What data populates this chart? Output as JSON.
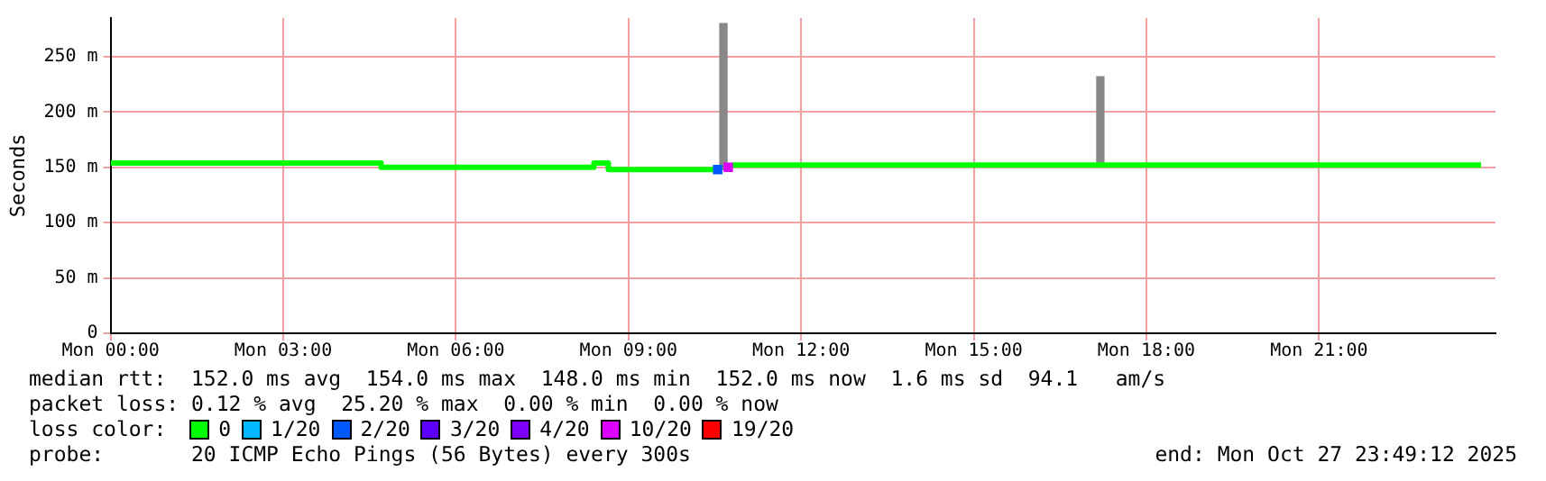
{
  "chart_data": {
    "type": "line",
    "ylabel": "Seconds",
    "legend_title": "loss color:",
    "legend": "bottom",
    "grid": true,
    "marker": "none",
    "line_style": "solid",
    "x": [
      "2025-10-27T00:00",
      "2025-10-27T04:42",
      "2025-10-27T04:42",
      "2025-10-27T08:24",
      "2025-10-27T08:24",
      "2025-10-27T08:39",
      "2025-10-27T08:39",
      "2025-10-27T10:36",
      "2025-10-27T10:39",
      "2025-10-27T10:48",
      "2025-10-27T23:49"
    ],
    "xlim": [
      "2025-10-27T00:00",
      "2025-10-28T00:04"
    ],
    "xticks": [
      {
        "value": "2025-10-27T00:00",
        "label": "Mon 00:00"
      },
      {
        "value": "2025-10-27T03:00",
        "label": "Mon 03:00"
      },
      {
        "value": "2025-10-27T06:00",
        "label": "Mon 06:00"
      },
      {
        "value": "2025-10-27T09:00",
        "label": "Mon 09:00"
      },
      {
        "value": "2025-10-27T12:00",
        "label": "Mon 12:00"
      },
      {
        "value": "2025-10-27T15:00",
        "label": "Mon 15:00"
      },
      {
        "value": "2025-10-27T18:00",
        "label": "Mon 18:00"
      },
      {
        "value": "2025-10-27T21:00",
        "label": "Mon 21:00"
      }
    ],
    "ylim": [
      0,
      285
    ],
    "yticks": [
      0,
      {
        "value": 50,
        "label": "50 m"
      },
      {
        "value": 100,
        "label": "100 m"
      },
      {
        "value": 150,
        "label": "150 m"
      },
      {
        "value": 200,
        "label": "200 m"
      },
      {
        "value": 250,
        "label": "250 m"
      }
    ],
    "series": [
      {
        "type": "bar",
        "color": "#888888",
        "x": [
          "2025-10-27T10:39",
          "2025-10-27T17:12"
        ],
        "base": [
          148,
          152
        ],
        "values": [
          132,
          80
        ]
      },
      {
        "name": "0",
        "color": "#00ff00",
        "values": [
          154,
          154,
          150,
          150,
          154,
          154,
          148,
          148,
          null,
          152,
          152
        ]
      },
      {
        "name": "1/20",
        "color": "#00b8ff",
        "values": [
          null,
          null,
          null,
          null,
          null,
          null,
          null,
          null,
          null,
          null,
          null
        ]
      },
      {
        "name": "2/20",
        "type": "scatter",
        "marker": "square",
        "color": "#0059ff",
        "x": [
          "2025-10-27T10:33"
        ],
        "values": [
          148
        ]
      },
      {
        "name": "3/20",
        "color": "#5e00ff",
        "values": [
          null,
          null,
          null,
          null,
          null,
          null,
          null,
          null,
          null,
          null,
          null
        ]
      },
      {
        "name": "4/20",
        "color": "#7e00ff",
        "values": [
          null,
          null,
          null,
          null,
          null,
          null,
          null,
          null,
          null,
          null,
          null
        ]
      },
      {
        "name": "10/20",
        "type": "scatter",
        "marker": "square",
        "color": "#dd00ff",
        "x": [
          "2025-10-27T10:44"
        ],
        "values": [
          150
        ]
      },
      {
        "name": "19/20",
        "color": "#ff0000",
        "values": [
          null,
          null,
          null,
          null,
          null,
          null,
          null,
          null,
          null,
          null,
          null
        ]
      }
    ],
    "annotations": [
      "median rtt:  152.0 ms avg  154.0 ms max  148.0 ms min  152.0 ms now  1.6 ms sd  94.1   am/s",
      "packet loss: 0.12 % avg  25.20 % max  0.00 % min  0.00 % now",
      "probe:       20 ICMP Echo Pings (56 Bytes) every 300s",
      "end: Mon Oct 27 23:49:12 2025"
    ]
  }
}
